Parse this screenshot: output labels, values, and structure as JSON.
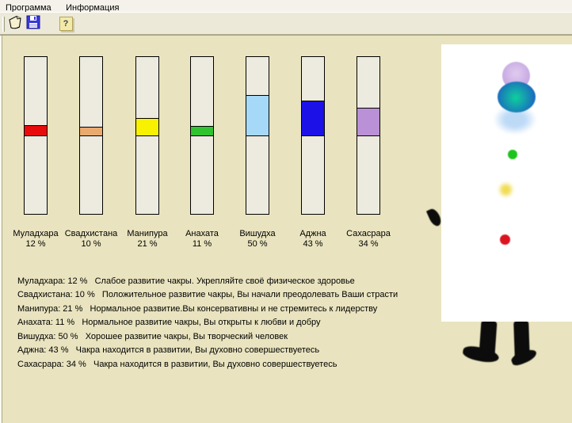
{
  "menu": {
    "items": [
      {
        "label": "Программа"
      },
      {
        "label": "Информация"
      }
    ]
  },
  "toolbar": {
    "new_label": "new-document",
    "save_label": "save",
    "help_glyph": "?"
  },
  "chakras": [
    {
      "name": "Муладхара",
      "percent": 12,
      "percent_label": "12 %",
      "color": "#e80b0b",
      "description": "Муладхара: 12 %   Слабое развитие чакры. Укрепляйте своё физическое здоровье"
    },
    {
      "name": "Свадхистана",
      "percent": 10,
      "percent_label": "10 %",
      "color": "#e9aa6e",
      "description": "Свадхистана: 10 %   Положительное развитие чакры, Вы начали преодолевать Ваши страсти"
    },
    {
      "name": "Манипура",
      "percent": 21,
      "percent_label": "21 %",
      "color": "#f8f200",
      "description": "Манипура: 21 %   Нормальное развитие.Вы консервативны и не стремитесь к лидерству"
    },
    {
      "name": "Анахата",
      "percent": 11,
      "percent_label": "11 %",
      "color": "#2fc42f",
      "description": "Анахата: 11 %   Нормальное развитие чакры, Вы открыты к любви и добру"
    },
    {
      "name": "Вишудха",
      "percent": 50,
      "percent_label": "50 %",
      "color": "#a6d9f7",
      "description": "Вишудха: 50 %   Хорошее развитие чакры, Вы творческий человек"
    },
    {
      "name": "Аджна",
      "percent": 43,
      "percent_label": "43 %",
      "color": "#1c12e8",
      "description": "Аджна: 43 %   Чакра находится в развитии, Вы духовно совершествуетесь"
    },
    {
      "name": "Сахасрара",
      "percent": 34,
      "percent_label": "34 %",
      "color": "#ba90d6",
      "description": "Сахасрара: 34 %   Чакра находится в развитии, Вы духовно совершествуетесь"
    }
  ],
  "figure": {
    "points": [
      {
        "name": "crown-glow",
        "color": "#c3a3e0"
      },
      {
        "name": "brow-glow",
        "color": "#1b66c0"
      },
      {
        "name": "throat-glow",
        "color": "#bcd9f6"
      },
      {
        "name": "heart-glow",
        "color": "#1ec41e"
      },
      {
        "name": "solar-glow",
        "color": "#f0dc50"
      },
      {
        "name": "root-glow",
        "color": "#dc1420"
      }
    ]
  },
  "colors": {
    "panel_background": "#e9e4bf",
    "bar_fill": "#edeadf",
    "chrome": "#ece9d8"
  }
}
